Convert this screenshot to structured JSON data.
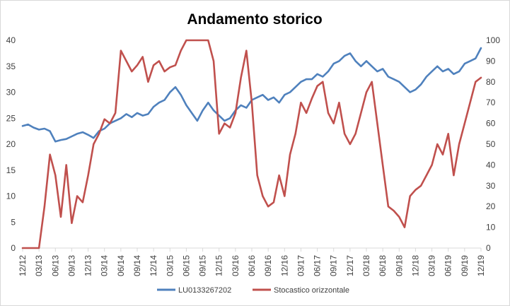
{
  "chart_data": {
    "type": "line",
    "title": "Andamento storico",
    "x_tick_labels": [
      "12/12",
      "03/13",
      "06/13",
      "09/13",
      "12/13",
      "03/14",
      "06/14",
      "09/14",
      "12/14",
      "03/15",
      "06/15",
      "09/15",
      "12/15",
      "03/16",
      "06/16",
      "09/16",
      "12/16",
      "03/17",
      "06/17",
      "09/17",
      "12/17",
      "03/18",
      "06/18",
      "09/18",
      "12/18",
      "03/19",
      "06/19",
      "09/19",
      "12/19"
    ],
    "y_left": {
      "range": [
        0,
        40
      ],
      "ticks": [
        "0",
        "5",
        "10",
        "15",
        "20",
        "25",
        "30",
        "35",
        "40"
      ]
    },
    "y_right": {
      "range": [
        0,
        100
      ],
      "ticks": [
        "0",
        "10",
        "20",
        "30",
        "40",
        "50",
        "60",
        "70",
        "80",
        "90",
        "100"
      ]
    },
    "grid": false,
    "legend_position": "bottom",
    "series": [
      {
        "name": "LU0133267202",
        "axis": "left",
        "color": "#4F81BD",
        "x": [
          "12/12",
          "01/13",
          "02/13",
          "03/13",
          "04/13",
          "05/13",
          "06/13",
          "07/13",
          "08/13",
          "09/13",
          "10/13",
          "11/13",
          "12/13",
          "01/14",
          "02/14",
          "03/14",
          "04/14",
          "05/14",
          "06/14",
          "07/14",
          "08/14",
          "09/14",
          "10/14",
          "11/14",
          "12/14",
          "01/15",
          "02/15",
          "03/15",
          "04/15",
          "05/15",
          "06/15",
          "07/15",
          "08/15",
          "09/15",
          "10/15",
          "11/15",
          "12/15",
          "01/16",
          "02/16",
          "03/16",
          "04/16",
          "05/16",
          "06/16",
          "07/16",
          "08/16",
          "09/16",
          "10/16",
          "11/16",
          "12/16",
          "01/17",
          "02/17",
          "03/17",
          "04/17",
          "05/17",
          "06/17",
          "07/17",
          "08/17",
          "09/17",
          "10/17",
          "11/17",
          "12/17",
          "01/18",
          "02/18",
          "03/18",
          "04/18",
          "05/18",
          "06/18",
          "07/18",
          "08/18",
          "09/18",
          "10/18",
          "11/18",
          "12/18",
          "01/19",
          "02/19",
          "03/19",
          "04/19",
          "05/19",
          "06/19",
          "07/19",
          "08/19",
          "09/19",
          "10/19",
          "11/19",
          "12/19"
        ],
        "values": [
          23.5,
          23.8,
          23.2,
          22.8,
          23.0,
          22.5,
          20.5,
          20.8,
          21.0,
          21.5,
          22.0,
          22.3,
          21.8,
          21.2,
          22.5,
          23.0,
          24.0,
          24.5,
          25.0,
          25.8,
          25.2,
          26.0,
          25.5,
          25.8,
          27.2,
          28.0,
          28.5,
          30.0,
          31.0,
          29.5,
          27.5,
          26.0,
          24.5,
          26.5,
          28.0,
          26.5,
          25.5,
          24.5,
          25.0,
          26.5,
          27.5,
          27.0,
          28.5,
          29.0,
          29.5,
          28.5,
          29.0,
          28.0,
          29.5,
          30.0,
          31.0,
          32.0,
          32.5,
          32.5,
          33.5,
          33.0,
          34.0,
          35.5,
          36.0,
          37.0,
          37.5,
          36.0,
          35.0,
          36.0,
          35.0,
          34.0,
          34.5,
          33.0,
          32.5,
          32.0,
          31.0,
          30.0,
          30.5,
          31.5,
          33.0,
          34.0,
          35.0,
          34.0,
          34.5,
          33.5,
          34.0,
          35.5,
          36.0,
          36.5,
          38.5
        ]
      },
      {
        "name": "Stocastico orizzontale",
        "axis": "right",
        "color": "#C0504D",
        "x": [
          "12/12",
          "01/13",
          "02/13",
          "03/13",
          "04/13",
          "05/13",
          "06/13",
          "07/13",
          "08/13",
          "09/13",
          "10/13",
          "11/13",
          "12/13",
          "01/14",
          "02/14",
          "03/14",
          "04/14",
          "05/14",
          "06/14",
          "07/14",
          "08/14",
          "09/14",
          "10/14",
          "11/14",
          "12/14",
          "01/15",
          "02/15",
          "03/15",
          "04/15",
          "05/15",
          "06/15",
          "07/15",
          "08/15",
          "09/15",
          "10/15",
          "11/15",
          "12/15",
          "01/16",
          "02/16",
          "03/16",
          "04/16",
          "05/16",
          "06/16",
          "07/16",
          "08/16",
          "09/16",
          "10/16",
          "11/16",
          "12/16",
          "01/17",
          "02/17",
          "03/17",
          "04/17",
          "05/17",
          "06/17",
          "07/17",
          "08/17",
          "09/17",
          "10/17",
          "11/17",
          "12/17",
          "01/18",
          "02/18",
          "03/18",
          "04/18",
          "05/18",
          "06/18",
          "07/18",
          "08/18",
          "09/18",
          "10/18",
          "11/18",
          "12/18",
          "01/19",
          "02/19",
          "03/19",
          "04/19",
          "05/19",
          "06/19",
          "07/19",
          "08/19",
          "09/19",
          "10/19",
          "11/19",
          "12/19"
        ],
        "values": [
          0,
          0,
          0,
          0,
          20,
          45,
          35,
          15,
          40,
          12,
          25,
          22,
          35,
          50,
          55,
          62,
          60,
          65,
          95,
          90,
          85,
          88,
          92,
          80,
          88,
          90,
          85,
          87,
          88,
          95,
          100,
          100,
          100,
          100,
          100,
          90,
          55,
          60,
          58,
          65,
          82,
          95,
          70,
          35,
          25,
          20,
          22,
          35,
          25,
          45,
          55,
          70,
          65,
          72,
          78,
          80,
          65,
          60,
          70,
          55,
          50,
          55,
          65,
          75,
          80,
          60,
          40,
          20,
          18,
          15,
          10,
          25,
          28,
          30,
          35,
          40,
          50,
          45,
          55,
          35,
          50,
          60,
          70,
          80,
          82
        ]
      }
    ]
  }
}
